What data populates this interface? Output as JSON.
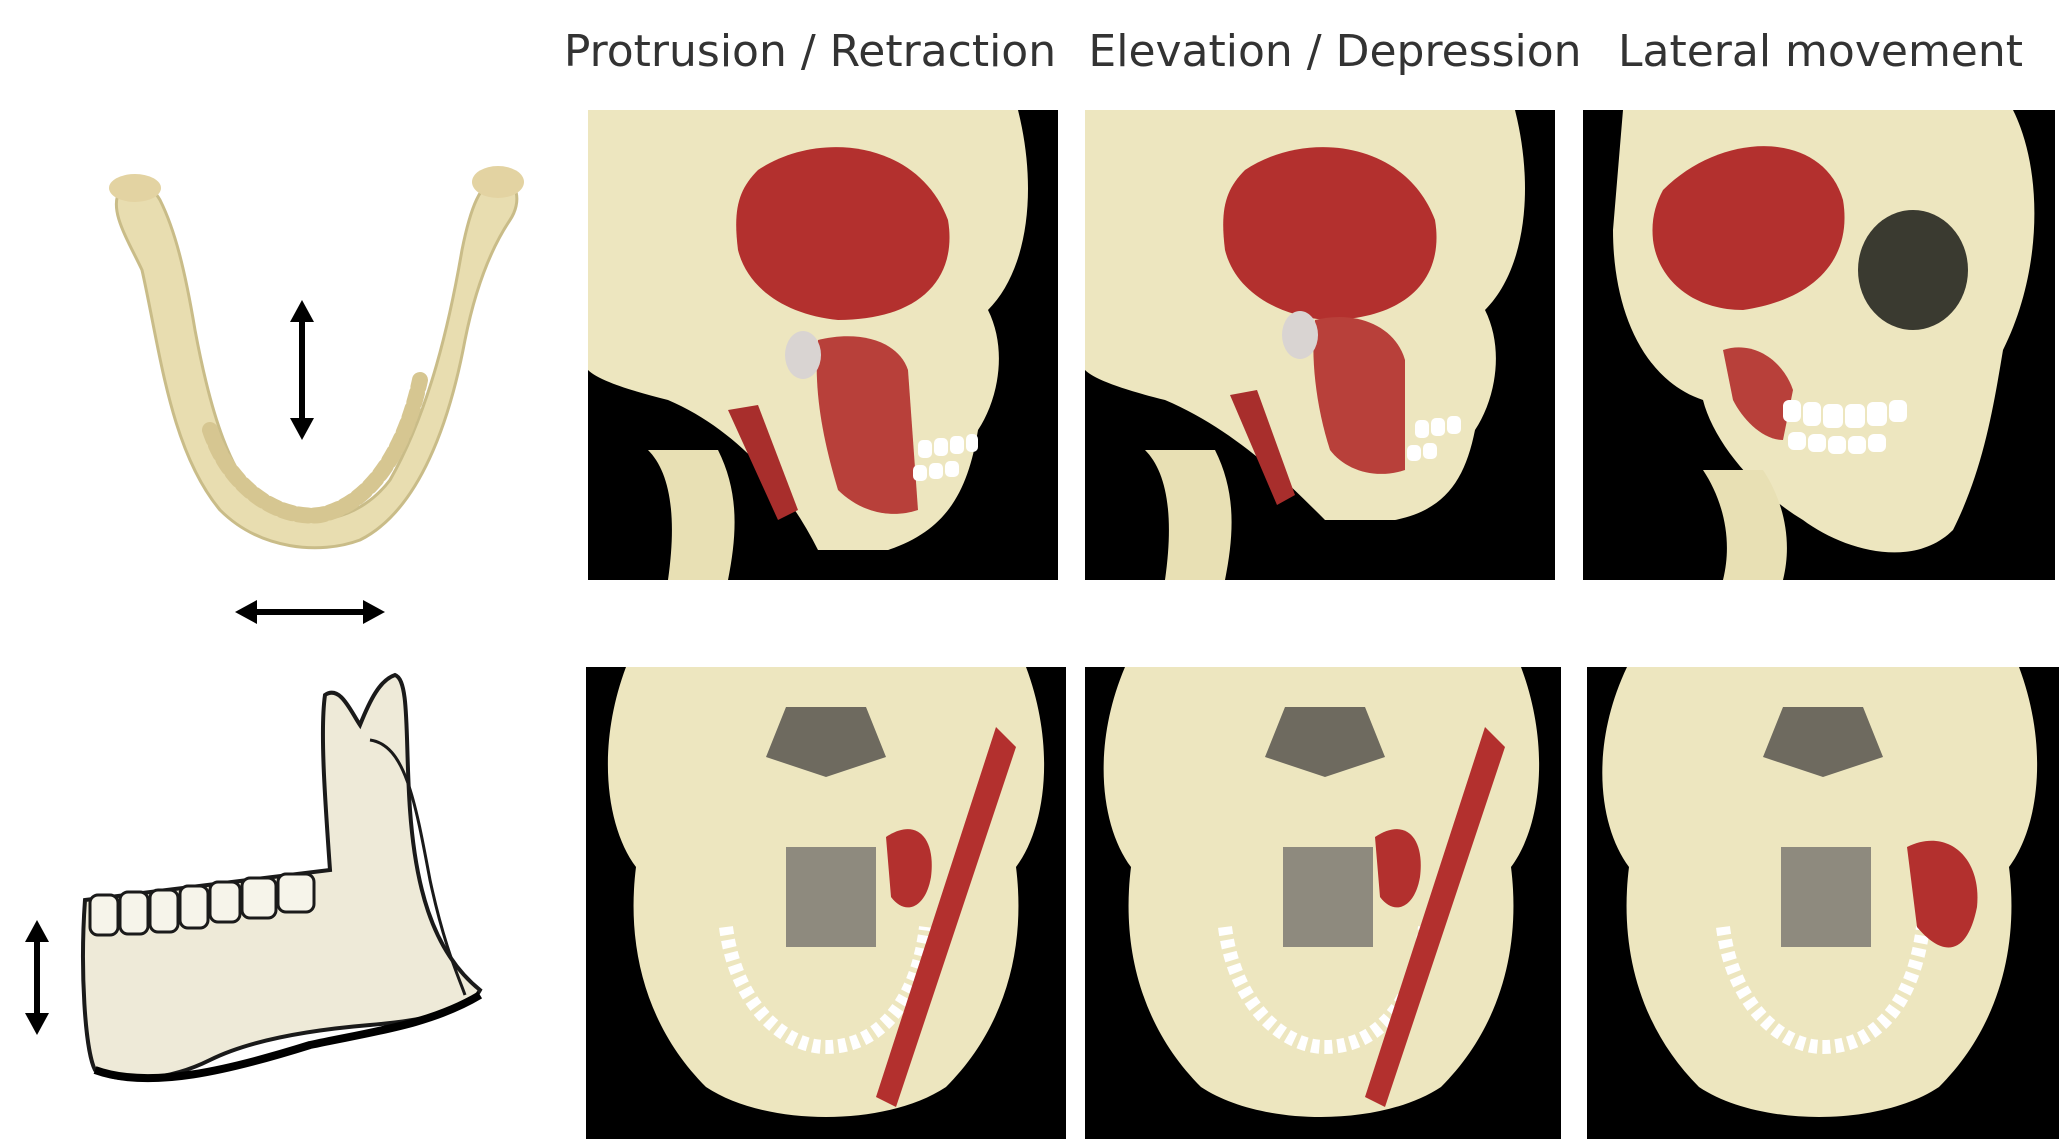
{
  "columns": [
    {
      "title": "Protrusion / Retraction"
    },
    {
      "title": "Elevation / Depression"
    },
    {
      "title": "Lateral movement"
    }
  ],
  "colors": {
    "bone": "#EDE6BF",
    "muscle": "#B3302E",
    "background": "#000000",
    "teeth": "#FFFFFF"
  },
  "icons": [
    "vertical-double-arrow",
    "horizontal-double-arrow"
  ]
}
